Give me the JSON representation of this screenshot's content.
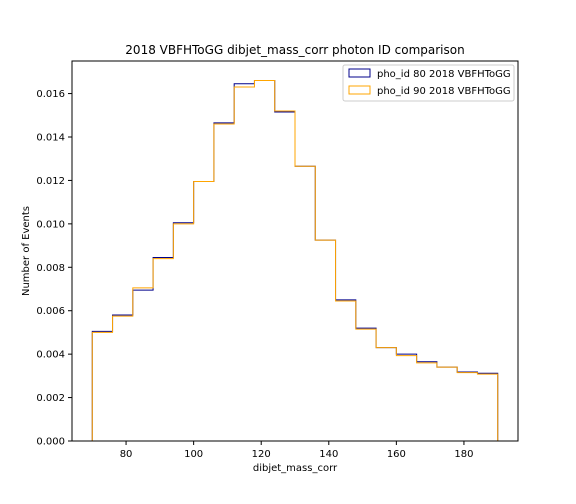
{
  "chart_data": {
    "type": "histogram",
    "title": "2018 VBFHToGG dibjet_mass_corr photon ID comparison",
    "xlabel": "dibjet_mass_corr",
    "ylabel": "Number of Events",
    "xlim": [
      64,
      196
    ],
    "ylim": [
      0,
      0.0175
    ],
    "xticks": [
      80,
      100,
      120,
      140,
      160,
      180
    ],
    "yticks": [
      0.0,
      0.002,
      0.004,
      0.006,
      0.008,
      0.01,
      0.012,
      0.014,
      0.016
    ],
    "ytick_labels": [
      "0.000",
      "0.002",
      "0.004",
      "0.006",
      "0.008",
      "0.010",
      "0.012",
      "0.014",
      "0.016"
    ],
    "legend_position": "top-right",
    "bin_edges": [
      70,
      76,
      82,
      88,
      94,
      100,
      106,
      112,
      118,
      124,
      130,
      136,
      142,
      148,
      154,
      160,
      166,
      172,
      178,
      184,
      190
    ],
    "series": [
      {
        "name": "pho_id 80 2018 VBFHToGG",
        "color": "#00008b",
        "values": [
          0.00505,
          0.0058,
          0.00695,
          0.00845,
          0.01005,
          0.01195,
          0.01465,
          0.01645,
          0.0166,
          0.01515,
          0.01265,
          0.00925,
          0.0065,
          0.0052,
          0.0043,
          0.004,
          0.00365,
          0.0034,
          0.00318,
          0.00312
        ]
      },
      {
        "name": "pho_id 90 2018 VBFHToGG",
        "color": "#ffa500",
        "values": [
          0.005,
          0.00575,
          0.00705,
          0.0084,
          0.01,
          0.01195,
          0.0146,
          0.0163,
          0.0166,
          0.0152,
          0.01265,
          0.00925,
          0.00645,
          0.00515,
          0.0043,
          0.00393,
          0.0036,
          0.0034,
          0.00315,
          0.00308
        ]
      }
    ]
  }
}
